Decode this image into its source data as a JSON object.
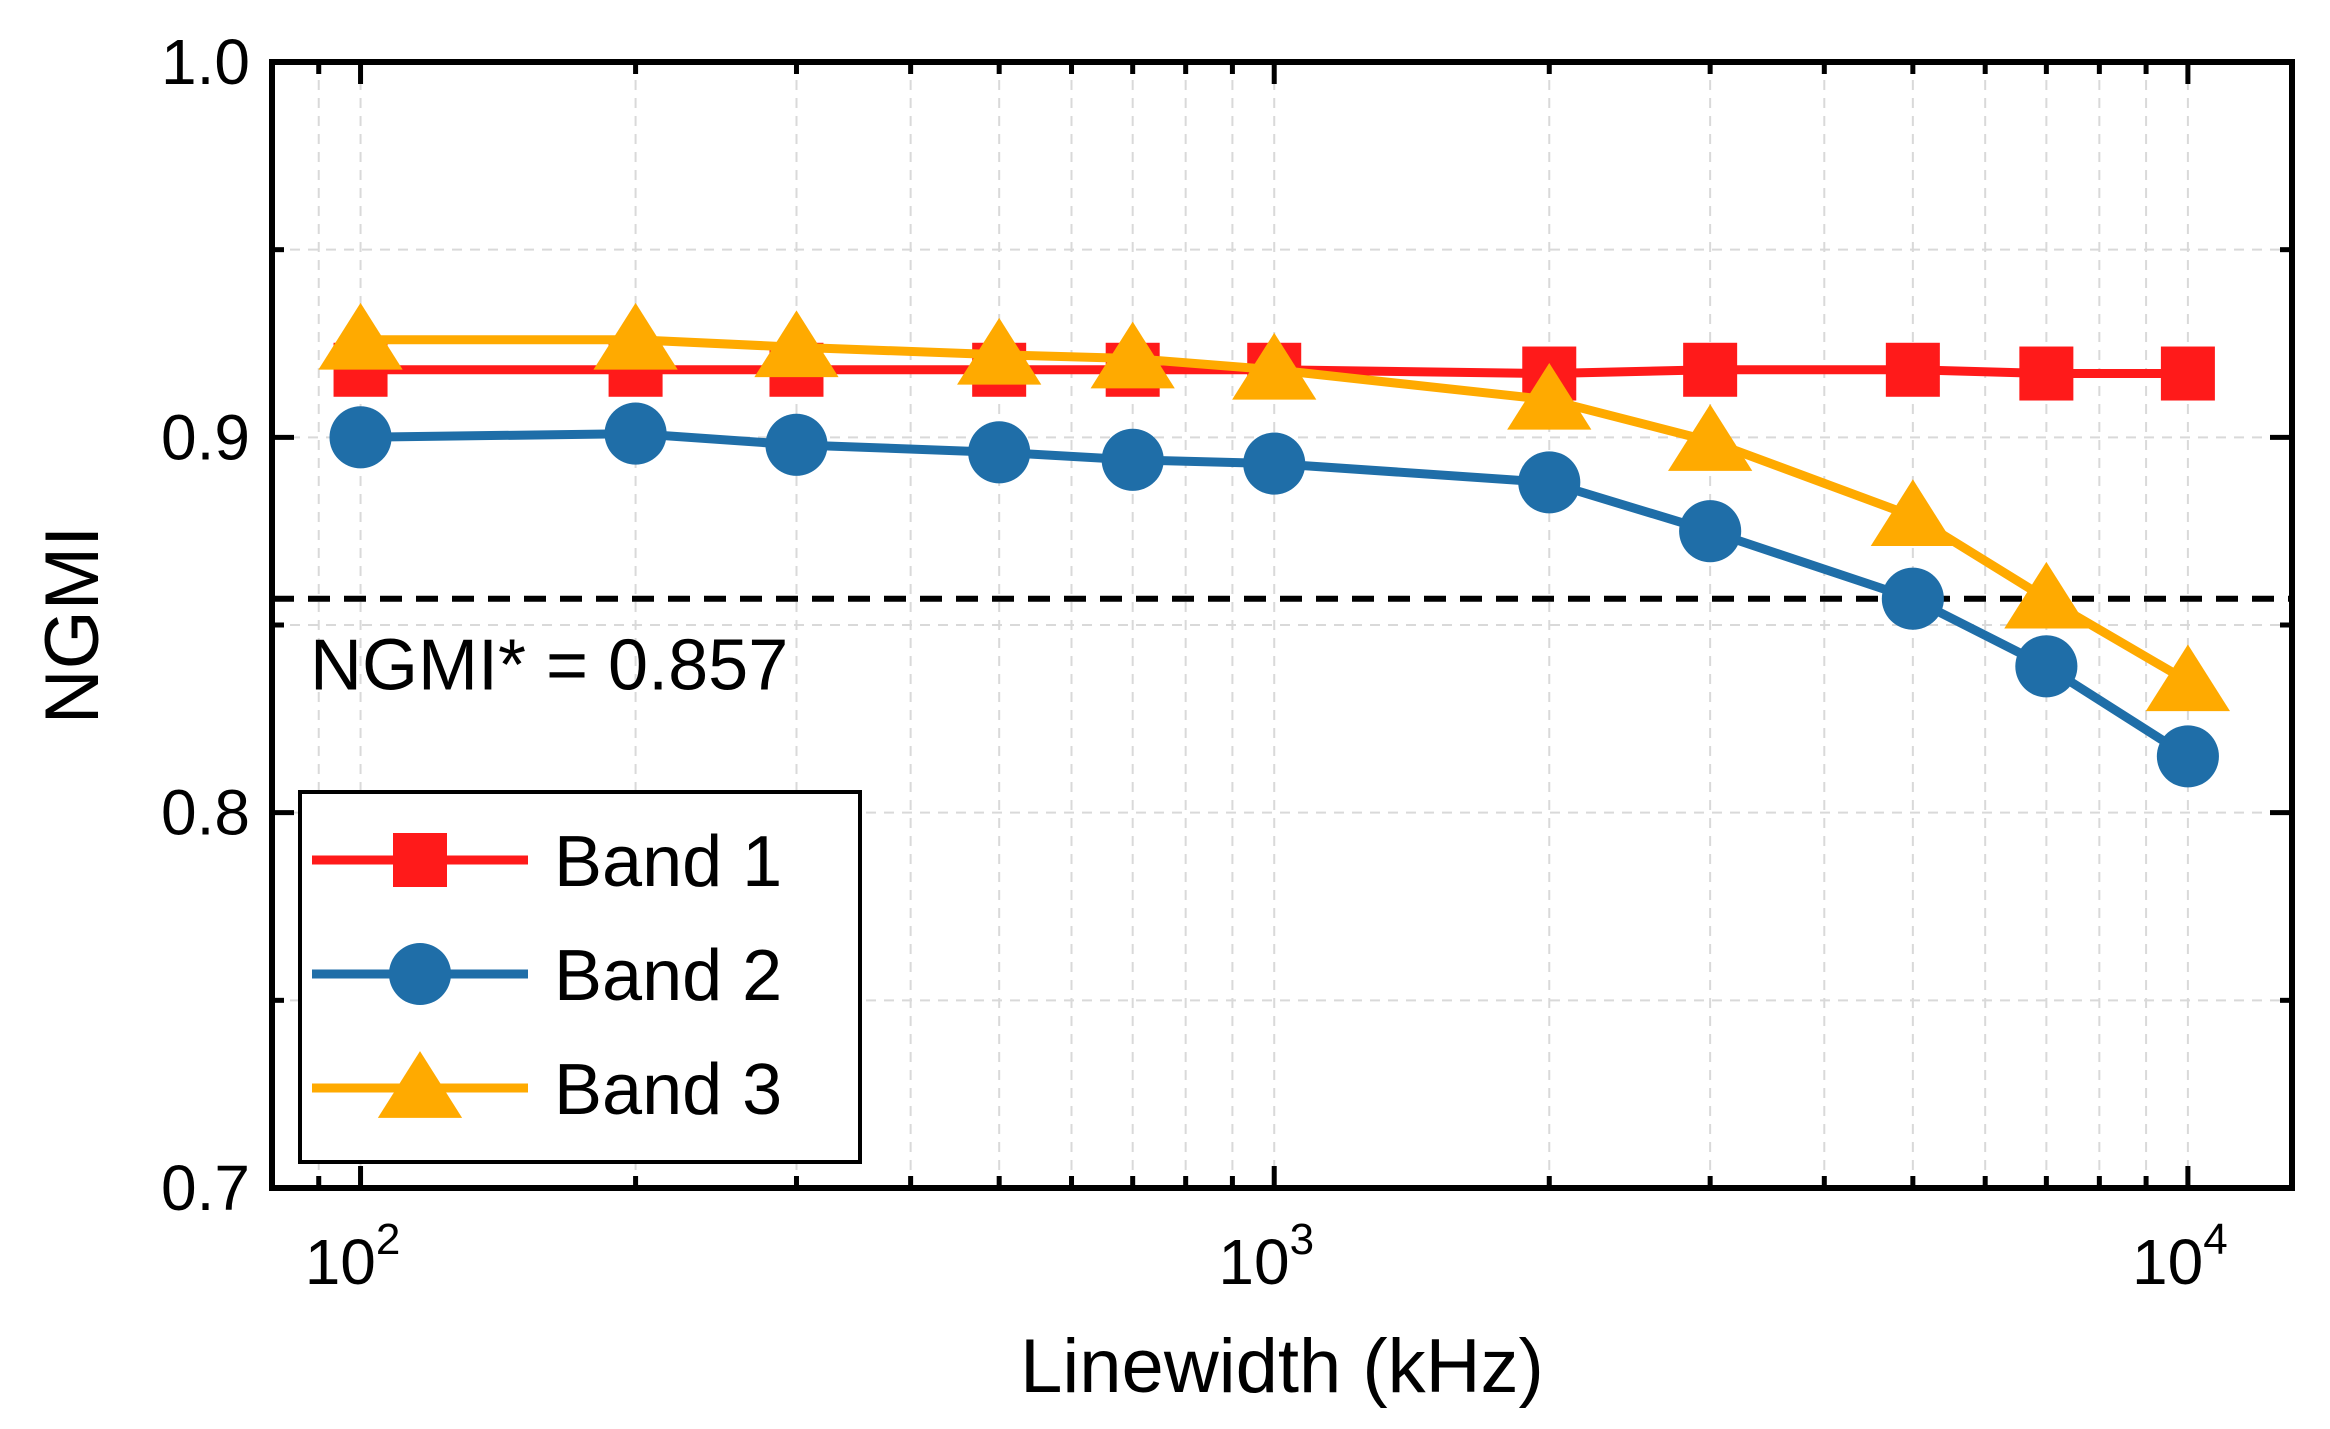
{
  "chart_data": {
    "type": "line",
    "title": "",
    "xlabel": "Linewidth (kHz)",
    "ylabel": "NGMI",
    "xscale": "log",
    "xlim": [
      80,
      13000
    ],
    "ylim": [
      0.7,
      1.0
    ],
    "grid": true,
    "x": [
      100,
      200,
      300,
      500,
      700,
      1000,
      2000,
      3000,
      5000,
      7000,
      10000
    ],
    "x_ticks": [
      {
        "value": 100,
        "base": "10",
        "exp": "2"
      },
      {
        "value": 1000,
        "base": "10",
        "exp": "3"
      },
      {
        "value": 10000,
        "base": "10",
        "exp": "4"
      }
    ],
    "y_ticks": [
      {
        "value": 0.7,
        "label": "0.7"
      },
      {
        "value": 0.8,
        "label": "0.8"
      },
      {
        "value": 0.9,
        "label": "0.9"
      },
      {
        "value": 1.0,
        "label": "1.0"
      }
    ],
    "series": [
      {
        "name": "Band 1",
        "color": "#ff1a1a",
        "marker": "square",
        "values": [
          0.918,
          0.918,
          0.918,
          0.918,
          0.918,
          0.918,
          0.917,
          0.918,
          0.918,
          0.917,
          0.917
        ]
      },
      {
        "name": "Band 2",
        "color": "#1f6ea8",
        "marker": "circle",
        "values": [
          0.9,
          0.901,
          0.898,
          0.896,
          0.894,
          0.893,
          0.888,
          0.875,
          0.857,
          0.839,
          0.815
        ]
      },
      {
        "name": "Band 3",
        "color": "#ffaa00",
        "marker": "triangle",
        "values": [
          0.926,
          0.926,
          0.924,
          0.922,
          0.921,
          0.918,
          0.91,
          0.899,
          0.879,
          0.857,
          0.835
        ]
      }
    ],
    "threshold": {
      "value": 0.857,
      "label": "NGMI* = 0.857",
      "style": "dashed",
      "color": "#000000"
    },
    "legend_position": "bottom-left"
  }
}
